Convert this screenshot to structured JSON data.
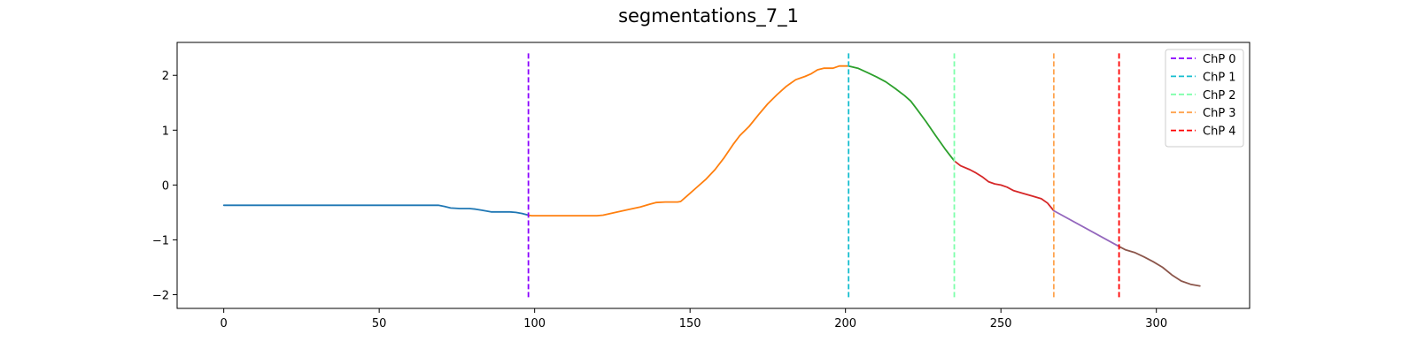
{
  "chart_data": {
    "type": "line",
    "title": "segmentations_7_1",
    "xlabel": "",
    "ylabel": "",
    "xlim": [
      -15,
      330
    ],
    "ylim": [
      -2.25,
      2.6
    ],
    "xticks": [
      0,
      50,
      100,
      150,
      200,
      250,
      300
    ],
    "yticks": [
      -2,
      -1,
      0,
      1,
      2
    ],
    "xtick_labels": [
      "0",
      "50",
      "100",
      "150",
      "200",
      "250",
      "300"
    ],
    "ytick_labels": [
      "−2",
      "−1",
      "0",
      "1",
      "2"
    ],
    "grid": false,
    "legend_position": "top-right",
    "segments": [
      {
        "color": "#1f77b4",
        "points": [
          [
            0,
            -0.37
          ],
          [
            20,
            -0.37
          ],
          [
            40,
            -0.37
          ],
          [
            60,
            -0.37
          ],
          [
            69,
            -0.37
          ],
          [
            71,
            -0.39
          ],
          [
            73,
            -0.42
          ],
          [
            76,
            -0.43
          ],
          [
            79,
            -0.43
          ],
          [
            81,
            -0.44
          ],
          [
            83,
            -0.46
          ],
          [
            86,
            -0.49
          ],
          [
            89,
            -0.49
          ],
          [
            92,
            -0.49
          ],
          [
            94,
            -0.5
          ],
          [
            96,
            -0.52
          ],
          [
            98,
            -0.55
          ]
        ]
      },
      {
        "color": "#ff7f0e",
        "points": [
          [
            98,
            -0.55
          ],
          [
            99,
            -0.56
          ],
          [
            105,
            -0.56
          ],
          [
            110,
            -0.56
          ],
          [
            115,
            -0.56
          ],
          [
            120,
            -0.56
          ],
          [
            122,
            -0.55
          ],
          [
            126,
            -0.5
          ],
          [
            130,
            -0.45
          ],
          [
            134,
            -0.4
          ],
          [
            137,
            -0.35
          ],
          [
            139,
            -0.32
          ],
          [
            142,
            -0.31
          ],
          [
            146,
            -0.31
          ],
          [
            147,
            -0.3
          ],
          [
            149,
            -0.2
          ],
          [
            152,
            -0.05
          ],
          [
            155,
            0.1
          ],
          [
            158,
            0.28
          ],
          [
            161,
            0.5
          ],
          [
            164,
            0.75
          ],
          [
            166,
            0.9
          ],
          [
            169,
            1.07
          ],
          [
            172,
            1.28
          ],
          [
            175,
            1.48
          ],
          [
            178,
            1.65
          ],
          [
            181,
            1.8
          ],
          [
            184,
            1.92
          ],
          [
            187,
            1.98
          ],
          [
            189,
            2.03
          ],
          [
            191,
            2.1
          ],
          [
            193,
            2.13
          ],
          [
            196,
            2.13
          ],
          [
            198,
            2.17
          ],
          [
            201,
            2.17
          ]
        ]
      },
      {
        "color": "#2ca02c",
        "points": [
          [
            201,
            2.17
          ],
          [
            204,
            2.13
          ],
          [
            207,
            2.05
          ],
          [
            210,
            1.97
          ],
          [
            213,
            1.88
          ],
          [
            216,
            1.76
          ],
          [
            219,
            1.63
          ],
          [
            221,
            1.53
          ],
          [
            223,
            1.38
          ],
          [
            226,
            1.15
          ],
          [
            229,
            0.9
          ],
          [
            232,
            0.66
          ],
          [
            235,
            0.44
          ]
        ]
      },
      {
        "color": "#d62728",
        "points": [
          [
            235,
            0.44
          ],
          [
            237,
            0.35
          ],
          [
            240,
            0.28
          ],
          [
            242,
            0.22
          ],
          [
            244,
            0.15
          ],
          [
            246,
            0.06
          ],
          [
            248,
            0.02
          ],
          [
            250,
            0.0
          ],
          [
            252,
            -0.04
          ],
          [
            254,
            -0.1
          ],
          [
            257,
            -0.15
          ],
          [
            260,
            -0.2
          ],
          [
            263,
            -0.25
          ],
          [
            265,
            -0.33
          ],
          [
            267,
            -0.47
          ]
        ]
      },
      {
        "color": "#9467bd",
        "points": [
          [
            267,
            -0.47
          ],
          [
            288,
            -1.12
          ]
        ]
      },
      {
        "color": "#8c564b",
        "points": [
          [
            288,
            -1.12
          ],
          [
            290,
            -1.18
          ],
          [
            293,
            -1.23
          ],
          [
            296,
            -1.31
          ],
          [
            299,
            -1.4
          ],
          [
            302,
            -1.5
          ],
          [
            305,
            -1.64
          ],
          [
            308,
            -1.75
          ],
          [
            311,
            -1.81
          ],
          [
            314,
            -1.84
          ]
        ]
      }
    ],
    "change_points": [
      {
        "name": "ChP 0",
        "x": 98,
        "color": "#8a00ff"
      },
      {
        "name": "ChP 1",
        "x": 201,
        "color": "#17becf"
      },
      {
        "name": "ChP 2",
        "x": 235,
        "color": "#7dffaa"
      },
      {
        "name": "ChP 3",
        "x": 267,
        "color": "#ffa44f"
      },
      {
        "name": "ChP 4",
        "x": 288,
        "color": "#ff0000"
      }
    ],
    "change_point_yrange": [
      -2.05,
      2.4
    ]
  }
}
